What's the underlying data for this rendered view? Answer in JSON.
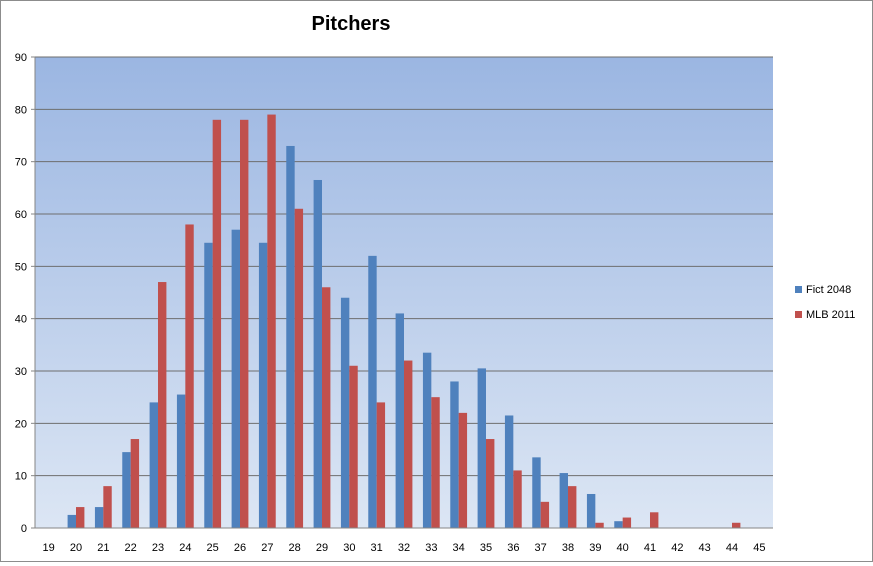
{
  "chart_data": {
    "type": "bar",
    "title": "Pitchers",
    "xlabel": "",
    "ylabel": "",
    "ylim": [
      0,
      90
    ],
    "yticks": [
      0,
      10,
      20,
      30,
      40,
      50,
      60,
      70,
      80,
      90
    ],
    "grid": true,
    "legend_position": "right",
    "categories": [
      "19",
      "20",
      "21",
      "22",
      "23",
      "24",
      "25",
      "26",
      "27",
      "28",
      "29",
      "30",
      "31",
      "32",
      "33",
      "34",
      "35",
      "36",
      "37",
      "38",
      "39",
      "40",
      "41",
      "42",
      "43",
      "44",
      "45"
    ],
    "series": [
      {
        "name": "Fict 2048",
        "color": "#4f81bd",
        "values": [
          0,
          2.5,
          4,
          14.5,
          24,
          25.5,
          54.5,
          57,
          54.5,
          73,
          66.5,
          44,
          52,
          41,
          33.5,
          28,
          30.5,
          21.5,
          13.5,
          10.5,
          6.5,
          1.3,
          0,
          0,
          0,
          0,
          0
        ]
      },
      {
        "name": "MLB 2011",
        "color": "#c0504d",
        "values": [
          0,
          4,
          8,
          17,
          47,
          58,
          78,
          78,
          79,
          61,
          46,
          31,
          24,
          32,
          25,
          22,
          17,
          11,
          5,
          8,
          1,
          2,
          3,
          0,
          0,
          1,
          0
        ]
      }
    ]
  }
}
